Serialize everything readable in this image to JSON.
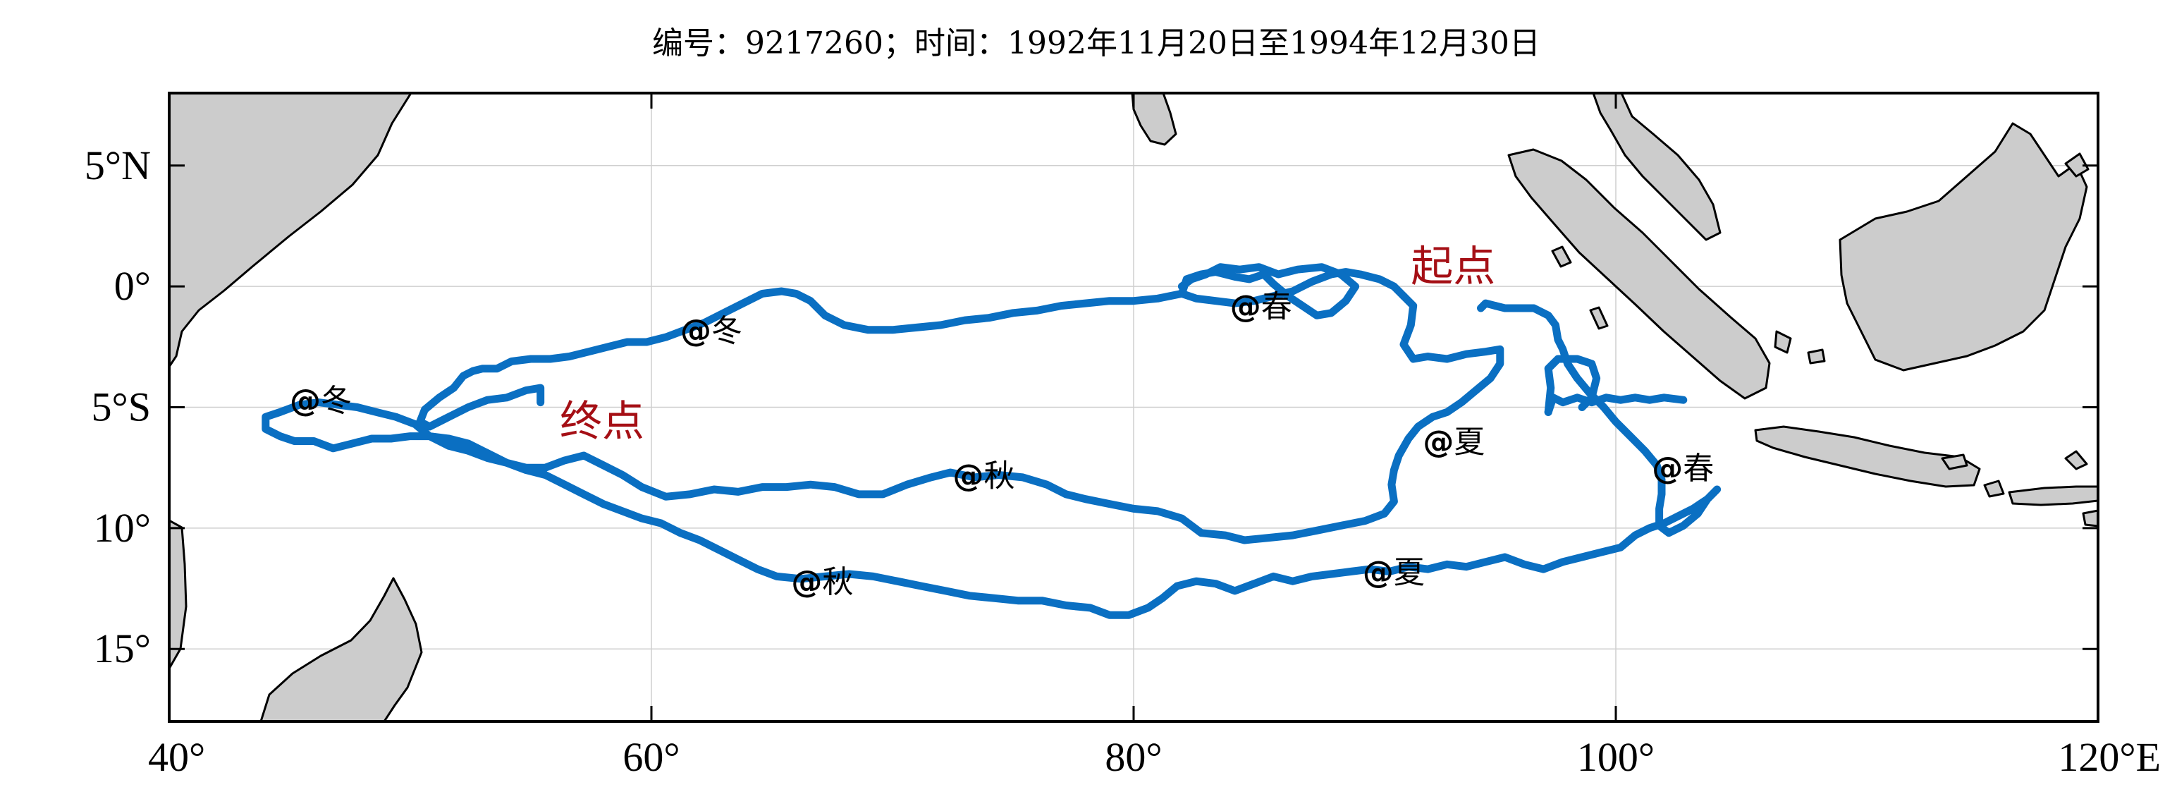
{
  "title": "编号：9217260；时间：1992年11月20日至1994年12月30日",
  "map": {
    "lon_range": [
      40,
      120
    ],
    "lat_range": [
      -18,
      8
    ],
    "grid": true,
    "land_color": "#cccccc",
    "track_color": "#0a6fc2",
    "label_color": "#a50f15",
    "x_ticks": [
      {
        "value": 40,
        "label": "40°"
      },
      {
        "value": 60,
        "label": "60°"
      },
      {
        "value": 80,
        "label": "80°"
      },
      {
        "value": 100,
        "label": "100°"
      },
      {
        "value": 120,
        "label": "120°E"
      }
    ],
    "y_ticks": [
      {
        "value": 5,
        "label": "5°N"
      },
      {
        "value": 0,
        "label": "0°"
      },
      {
        "value": -5,
        "label": "5°S"
      },
      {
        "value": -10,
        "label": "10°"
      },
      {
        "value": -15,
        "label": "15°"
      }
    ]
  },
  "labels": {
    "start": {
      "text": "起点",
      "lon": 91.5,
      "lat": 0.8
    },
    "end": {
      "text": "终点",
      "lon": 56.2,
      "lat": -5.6
    }
  },
  "season_markers": [
    {
      "at": "@",
      "season": "冬",
      "lon": 61.2,
      "lat": -1.8
    },
    {
      "at": "@",
      "season": "冬",
      "lon": 45.0,
      "lat": -4.7
    },
    {
      "at": "@",
      "season": "春",
      "lon": 84.0,
      "lat": -0.8
    },
    {
      "at": "@",
      "season": "春",
      "lon": 101.5,
      "lat": -7.5
    },
    {
      "at": "@",
      "season": "夏",
      "lon": 92.0,
      "lat": -6.4
    },
    {
      "at": "@",
      "season": "夏",
      "lon": 89.5,
      "lat": -11.8
    },
    {
      "at": "@",
      "season": "秋",
      "lon": 72.5,
      "lat": -7.8
    },
    {
      "at": "@",
      "season": "秋",
      "lon": 65.8,
      "lat": -12.2
    }
  ],
  "drifter_track": [
    [
      91.2,
      -0.4
    ],
    [
      91.6,
      -0.8
    ],
    [
      91.5,
      -1.6
    ],
    [
      91.2,
      -2.4
    ],
    [
      91.6,
      -3.0
    ],
    [
      92.2,
      -2.9
    ],
    [
      93.0,
      -3.0
    ],
    [
      93.8,
      -2.8
    ],
    [
      94.6,
      -2.7
    ],
    [
      95.2,
      -2.6
    ],
    [
      95.2,
      -3.2
    ],
    [
      94.8,
      -3.8
    ],
    [
      94.2,
      -4.3
    ],
    [
      93.6,
      -4.8
    ],
    [
      93.0,
      -5.2
    ],
    [
      92.4,
      -5.4
    ],
    [
      91.8,
      -5.8
    ],
    [
      91.4,
      -6.3
    ],
    [
      91.0,
      -7.0
    ],
    [
      90.8,
      -7.6
    ],
    [
      90.7,
      -8.2
    ],
    [
      90.8,
      -8.9
    ],
    [
      90.4,
      -9.4
    ],
    [
      89.6,
      -9.7
    ],
    [
      88.6,
      -9.9
    ],
    [
      87.6,
      -10.1
    ],
    [
      86.6,
      -10.3
    ],
    [
      85.6,
      -10.4
    ],
    [
      84.6,
      -10.5
    ],
    [
      83.8,
      -10.3
    ],
    [
      82.8,
      -10.2
    ],
    [
      82.0,
      -9.6
    ],
    [
      81.0,
      -9.3
    ],
    [
      80.0,
      -9.2
    ],
    [
      79.0,
      -9.0
    ],
    [
      78.0,
      -8.8
    ],
    [
      77.2,
      -8.6
    ],
    [
      76.4,
      -8.2
    ],
    [
      75.4,
      -7.9
    ],
    [
      74.4,
      -7.8
    ],
    [
      73.4,
      -7.9
    ],
    [
      72.4,
      -7.7
    ],
    [
      71.6,
      -7.9
    ],
    [
      70.6,
      -8.2
    ],
    [
      69.6,
      -8.6
    ],
    [
      68.6,
      -8.6
    ],
    [
      67.6,
      -8.3
    ],
    [
      66.6,
      -8.2
    ],
    [
      65.6,
      -8.3
    ],
    [
      64.6,
      -8.3
    ],
    [
      63.6,
      -8.5
    ],
    [
      62.6,
      -8.4
    ],
    [
      61.6,
      -8.6
    ],
    [
      60.6,
      -8.7
    ],
    [
      59.6,
      -8.3
    ],
    [
      58.8,
      -7.8
    ],
    [
      58.0,
      -7.4
    ],
    [
      57.2,
      -7.0
    ],
    [
      56.4,
      -7.2
    ],
    [
      55.6,
      -7.5
    ],
    [
      54.8,
      -7.5
    ],
    [
      54.0,
      -7.3
    ],
    [
      53.2,
      -6.9
    ],
    [
      52.4,
      -6.5
    ],
    [
      51.6,
      -6.3
    ],
    [
      50.8,
      -6.2
    ],
    [
      50.0,
      -6.2
    ],
    [
      49.2,
      -6.3
    ],
    [
      48.4,
      -6.3
    ],
    [
      47.6,
      -6.5
    ],
    [
      46.8,
      -6.7
    ],
    [
      46.0,
      -6.4
    ],
    [
      45.2,
      -6.4
    ],
    [
      44.6,
      -6.2
    ],
    [
      44.0,
      -5.9
    ],
    [
      44.0,
      -5.4
    ],
    [
      44.6,
      -5.2
    ],
    [
      45.4,
      -4.9
    ],
    [
      46.2,
      -4.8
    ],
    [
      47.0,
      -4.9
    ],
    [
      47.8,
      -5.0
    ],
    [
      48.6,
      -5.2
    ],
    [
      49.4,
      -5.4
    ],
    [
      50.2,
      -5.7
    ],
    [
      50.8,
      -6.2
    ],
    [
      51.6,
      -6.6
    ],
    [
      52.4,
      -6.8
    ],
    [
      53.2,
      -7.1
    ],
    [
      54.0,
      -7.3
    ],
    [
      54.8,
      -7.6
    ],
    [
      55.6,
      -7.8
    ],
    [
      56.4,
      -8.2
    ],
    [
      57.2,
      -8.6
    ],
    [
      58.0,
      -9.0
    ],
    [
      58.8,
      -9.3
    ],
    [
      59.6,
      -9.6
    ],
    [
      60.4,
      -9.8
    ],
    [
      61.2,
      -10.2
    ],
    [
      62.0,
      -10.5
    ],
    [
      62.8,
      -10.9
    ],
    [
      63.6,
      -11.3
    ],
    [
      64.4,
      -11.7
    ],
    [
      65.2,
      -12.0
    ],
    [
      66.2,
      -12.1
    ],
    [
      67.2,
      -12.0
    ],
    [
      68.2,
      -11.9
    ],
    [
      69.2,
      -12.0
    ],
    [
      70.2,
      -12.2
    ],
    [
      71.2,
      -12.4
    ],
    [
      72.2,
      -12.6
    ],
    [
      73.2,
      -12.8
    ],
    [
      74.2,
      -12.9
    ],
    [
      75.2,
      -13.0
    ],
    [
      76.2,
      -13.0
    ],
    [
      77.2,
      -13.2
    ],
    [
      78.2,
      -13.3
    ],
    [
      79.0,
      -13.6
    ],
    [
      79.8,
      -13.6
    ],
    [
      80.6,
      -13.3
    ],
    [
      81.2,
      -12.9
    ],
    [
      81.8,
      -12.4
    ],
    [
      82.6,
      -12.2
    ],
    [
      83.4,
      -12.3
    ],
    [
      84.2,
      -12.6
    ],
    [
      85.0,
      -12.3
    ],
    [
      85.8,
      -12.0
    ],
    [
      86.6,
      -12.2
    ],
    [
      87.4,
      -12.0
    ],
    [
      88.2,
      -11.9
    ],
    [
      89.0,
      -11.8
    ],
    [
      89.8,
      -11.7
    ],
    [
      90.6,
      -11.8
    ],
    [
      91.4,
      -11.6
    ],
    [
      92.2,
      -11.7
    ],
    [
      93.0,
      -11.5
    ],
    [
      93.8,
      -11.6
    ],
    [
      94.6,
      -11.4
    ],
    [
      95.4,
      -11.2
    ],
    [
      96.2,
      -11.5
    ],
    [
      97.0,
      -11.7
    ],
    [
      97.8,
      -11.4
    ],
    [
      98.6,
      -11.2
    ],
    [
      99.4,
      -11.0
    ],
    [
      100.2,
      -10.8
    ],
    [
      100.8,
      -10.3
    ],
    [
      101.4,
      -10.0
    ],
    [
      102.0,
      -9.8
    ],
    [
      102.6,
      -9.5
    ],
    [
      103.2,
      -9.2
    ],
    [
      103.8,
      -8.8
    ],
    [
      104.2,
      -8.4
    ],
    [
      103.8,
      -8.8
    ],
    [
      103.4,
      -9.4
    ],
    [
      102.8,
      -9.9
    ],
    [
      102.2,
      -10.2
    ],
    [
      101.8,
      -9.9
    ],
    [
      101.8,
      -9.2
    ],
    [
      101.9,
      -8.6
    ],
    [
      101.9,
      -8.0
    ],
    [
      101.7,
      -7.4
    ],
    [
      101.2,
      -6.8
    ],
    [
      100.6,
      -6.2
    ],
    [
      100.0,
      -5.6
    ],
    [
      99.5,
      -5.0
    ],
    [
      98.9,
      -4.4
    ],
    [
      98.4,
      -3.8
    ],
    [
      98.0,
      -3.2
    ],
    [
      97.8,
      -2.6
    ],
    [
      97.6,
      -2.2
    ],
    [
      97.5,
      -1.6
    ],
    [
      97.2,
      -1.2
    ],
    [
      96.6,
      -0.9
    ],
    [
      96.0,
      -0.9
    ],
    [
      95.4,
      -0.9
    ],
    [
      95.0,
      -0.8
    ]
  ],
  "drifter_track_segments": [
    [
      [
        82.0,
        -0.3
      ],
      [
        82.6,
        -0.5
      ],
      [
        83.4,
        -0.6
      ],
      [
        84.2,
        -0.7
      ],
      [
        85.0,
        -0.6
      ],
      [
        85.8,
        -0.4
      ],
      [
        86.6,
        -0.2
      ],
      [
        87.4,
        0.2
      ],
      [
        88.2,
        0.5
      ],
      [
        88.8,
        0.6
      ],
      [
        89.4,
        0.5
      ],
      [
        90.2,
        0.3
      ],
      [
        90.8,
        0.0
      ],
      [
        91.2,
        -0.4
      ]
    ],
    [
      [
        82.0,
        -0.3
      ],
      [
        81.0,
        -0.5
      ],
      [
        80.0,
        -0.6
      ],
      [
        79.0,
        -0.6
      ],
      [
        78.0,
        -0.7
      ],
      [
        77.0,
        -0.8
      ],
      [
        76.0,
        -1.0
      ],
      [
        75.0,
        -1.1
      ],
      [
        74.0,
        -1.3
      ],
      [
        73.0,
        -1.4
      ],
      [
        72.0,
        -1.6
      ],
      [
        71.0,
        -1.7
      ],
      [
        70.0,
        -1.8
      ],
      [
        69.0,
        -1.8
      ],
      [
        68.0,
        -1.6
      ],
      [
        67.2,
        -1.2
      ],
      [
        66.6,
        -0.6
      ],
      [
        66.0,
        -0.3
      ],
      [
        65.4,
        -0.2
      ],
      [
        64.6,
        -0.3
      ],
      [
        63.8,
        -0.7
      ],
      [
        63.0,
        -1.1
      ],
      [
        62.2,
        -1.5
      ],
      [
        61.4,
        -1.8
      ],
      [
        60.6,
        -2.1
      ],
      [
        59.8,
        -2.3
      ],
      [
        59.0,
        -2.3
      ],
      [
        58.2,
        -2.5
      ],
      [
        57.4,
        -2.7
      ],
      [
        56.6,
        -2.9
      ],
      [
        55.8,
        -3.0
      ],
      [
        55.0,
        -3.0
      ],
      [
        54.2,
        -3.1
      ],
      [
        53.6,
        -3.4
      ],
      [
        53.0,
        -3.4
      ],
      [
        52.6,
        -3.5
      ],
      [
        52.2,
        -3.7
      ],
      [
        51.8,
        -4.2
      ],
      [
        51.2,
        -4.6
      ],
      [
        50.6,
        -5.1
      ],
      [
        50.4,
        -5.6
      ],
      [
        50.8,
        -5.8
      ],
      [
        51.6,
        -5.4
      ],
      [
        52.4,
        -5.0
      ],
      [
        53.2,
        -4.7
      ],
      [
        54.0,
        -4.6
      ],
      [
        54.8,
        -4.3
      ],
      [
        55.4,
        -4.2
      ],
      [
        55.4,
        -4.8
      ]
    ],
    [
      [
        82.0,
        -0.3
      ],
      [
        82.2,
        0.3
      ],
      [
        82.8,
        0.5
      ],
      [
        83.4,
        0.6
      ],
      [
        84.2,
        0.4
      ],
      [
        84.8,
        0.3
      ],
      [
        85.4,
        0.5
      ],
      [
        85.8,
        0.1
      ],
      [
        86.4,
        -0.4
      ],
      [
        87.0,
        -0.8
      ],
      [
        87.6,
        -1.2
      ],
      [
        88.2,
        -1.1
      ],
      [
        88.8,
        -0.6
      ],
      [
        89.2,
        0.0
      ],
      [
        88.6,
        0.5
      ],
      [
        87.8,
        0.8
      ],
      [
        86.8,
        0.7
      ],
      [
        86.0,
        0.5
      ],
      [
        85.2,
        0.8
      ],
      [
        84.4,
        0.7
      ],
      [
        83.6,
        0.8
      ],
      [
        83.0,
        0.5
      ],
      [
        82.4,
        0.3
      ],
      [
        82.0,
        0.0
      ]
    ],
    [
      [
        97.2,
        -5.2
      ],
      [
        97.4,
        -4.6
      ],
      [
        97.8,
        -4.8
      ],
      [
        98.4,
        -4.6
      ],
      [
        99.0,
        -4.8
      ],
      [
        99.6,
        -4.6
      ],
      [
        100.2,
        -4.7
      ],
      [
        100.8,
        -4.6
      ],
      [
        101.4,
        -4.7
      ],
      [
        102.0,
        -4.6
      ],
      [
        102.8,
        -4.7
      ]
    ],
    [
      [
        97.2,
        -5.2
      ],
      [
        97.3,
        -4.2
      ],
      [
        97.2,
        -3.4
      ],
      [
        97.6,
        -3.0
      ],
      [
        98.4,
        -3.0
      ],
      [
        99.0,
        -3.2
      ],
      [
        99.2,
        -3.8
      ],
      [
        99.0,
        -4.6
      ],
      [
        98.6,
        -5.0
      ]
    ],
    [
      [
        95.0,
        -0.8
      ],
      [
        94.6,
        -0.7
      ],
      [
        94.4,
        -0.9
      ]
    ]
  ]
}
